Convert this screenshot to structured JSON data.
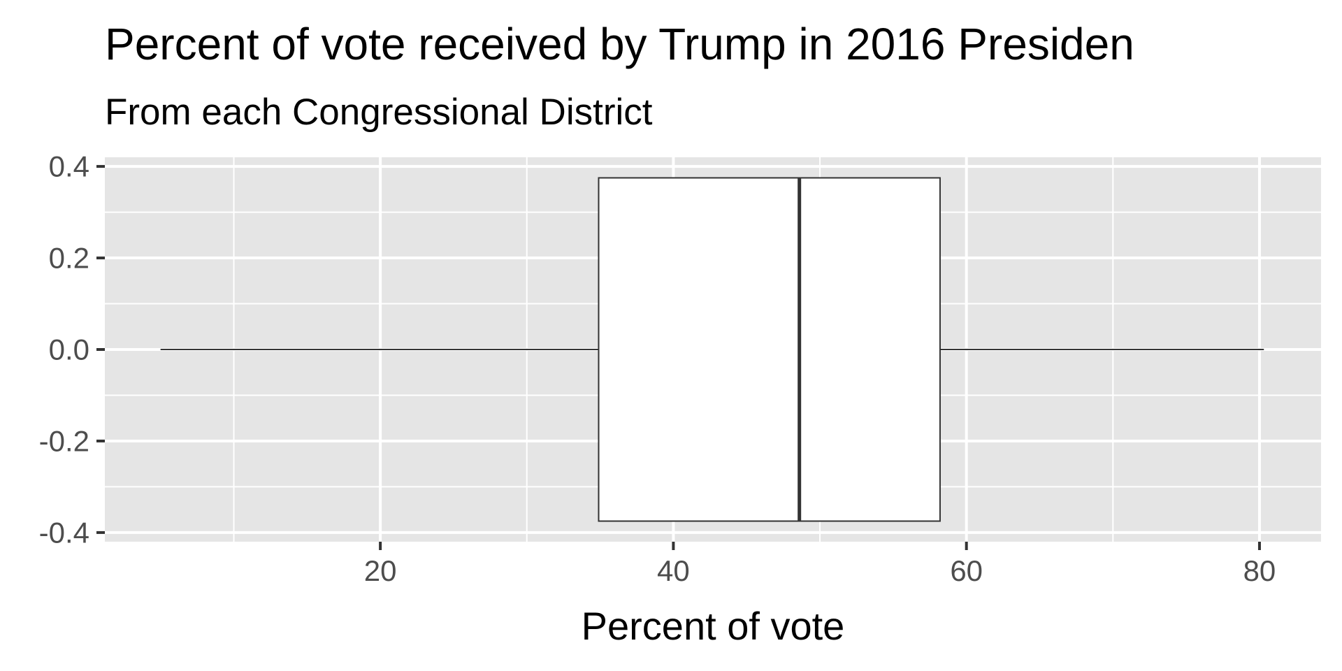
{
  "chart_data": {
    "type": "boxplot",
    "title": "Percent of vote received by Trump in 2016 Presiden",
    "subtitle": "From each Congressional District",
    "xlabel": "Percent of vote",
    "ylabel": "",
    "xlim": [
      1.2,
      84.2
    ],
    "ylim": [
      -0.42,
      0.42
    ],
    "x_ticks": [
      20,
      40,
      60,
      80
    ],
    "x_tick_labels": [
      "20",
      "40",
      "60",
      "80"
    ],
    "y_ticks": [
      0.4,
      0.2,
      0.0,
      -0.2,
      -0.4
    ],
    "y_tick_labels": [
      "0.4",
      "0.2",
      "0.0",
      "-0.2",
      "-0.4"
    ],
    "box": {
      "min": 5,
      "q1": 34.9,
      "median": 48.6,
      "q3": 58.2,
      "max": 80.3,
      "y_center": 0.0,
      "half_width": 0.375
    },
    "grid": true,
    "background": "#e5e5e5",
    "gridline_color": "#ffffff",
    "box_fill": "#ffffff",
    "box_stroke": "#333333"
  }
}
